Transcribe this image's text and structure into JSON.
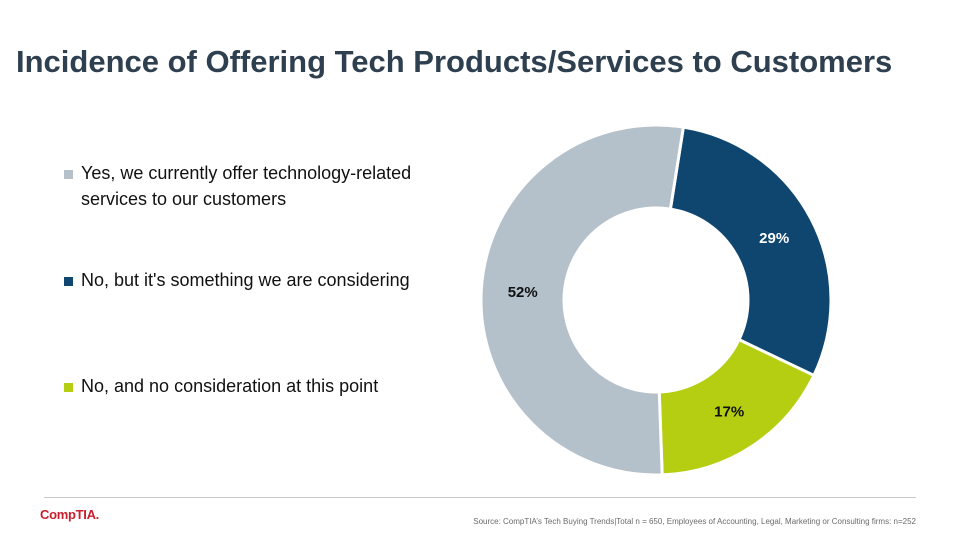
{
  "title": "Incidence of Offering Tech Products/Services to Customers",
  "chart_data": {
    "type": "pie",
    "variant": "donut",
    "title": "Incidence of Offering Tech Products/Services to Customers",
    "legend_position": "left",
    "series": [
      {
        "name": "Yes, we currently offer technology-related services to our customers",
        "value": 52,
        "label": "52%",
        "color": "#b4c0ca",
        "label_color": "#111111"
      },
      {
        "name": "No, but it's something we are considering",
        "value": 29,
        "label": "29%",
        "color": "#0e4670",
        "label_color": "#ffffff"
      },
      {
        "name": "No, and no consideration at this point",
        "value": 17,
        "label": "17%",
        "color": "#b5ce12",
        "label_color": "#111111"
      }
    ],
    "draw_order": [
      1,
      2,
      0
    ],
    "start_angle_deg": 9
  },
  "footer": {
    "logo_text": "CompTIA.",
    "source": "Source:  CompTIA’s Tech Buying Trends|Total  n = 650, Employees of  Accounting,  Legal, Marketing or Consulting  firms:  n=252"
  },
  "colors": {
    "title": "#2e3f4f",
    "divider": "#c8c8c8",
    "logo": "#c8202f"
  }
}
